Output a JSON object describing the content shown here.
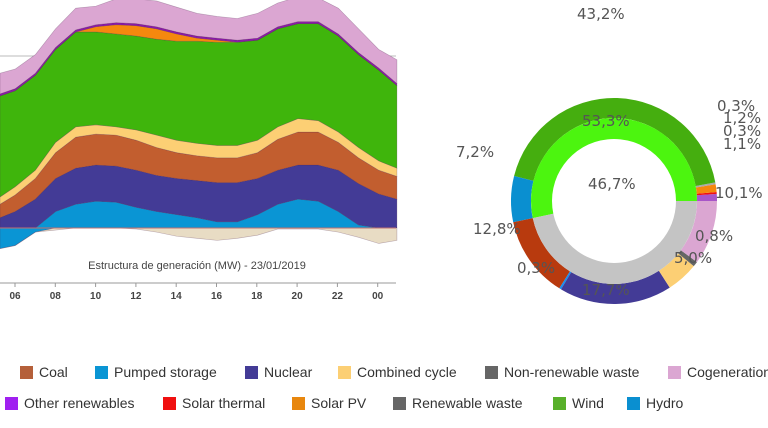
{
  "chart_data": [
    {
      "type": "area",
      "stacked": true,
      "title": "Estructura de generación (MW) - 23/01/2019",
      "x_ticks": [
        "06",
        "08",
        "10",
        "12",
        "14",
        "16",
        "18",
        "20",
        "22",
        "00"
      ],
      "x_hours": [
        5.25,
        6,
        7,
        8,
        9,
        10,
        11,
        12,
        13,
        14,
        15,
        16,
        17,
        18,
        19,
        20,
        21,
        22,
        23,
        24,
        24.9
      ],
      "gridline": 25000,
      "series": [
        {
          "key": "hydro",
          "color": "#0a95d4",
          "values": [
            0,
            0,
            0,
            2400,
            3450,
            3900,
            3750,
            3000,
            2400,
            1950,
            1500,
            900,
            900,
            1950,
            3450,
            4200,
            3900,
            2400,
            450,
            0,
            0
          ]
        },
        {
          "key": "nuclear",
          "color": "#433b96",
          "values": [
            1500,
            2400,
            4200,
            4800,
            5250,
            5250,
            5250,
            5400,
            5250,
            5250,
            5400,
            5700,
            5700,
            5250,
            4950,
            4950,
            5250,
            6000,
            6000,
            4950,
            4200
          ]
        },
        {
          "key": "coal",
          "color": "#c25e2f",
          "values": [
            1950,
            2400,
            3000,
            3750,
            4500,
            4500,
            4500,
            4350,
            4050,
            3750,
            3600,
            3600,
            3600,
            3750,
            4500,
            4800,
            4800,
            4050,
            3750,
            3450,
            3300
          ]
        },
        {
          "key": "combined_cycle",
          "color": "#fccf74",
          "values": [
            1050,
            1200,
            1200,
            1500,
            1500,
            1350,
            1200,
            1500,
            1800,
            1800,
            1800,
            1800,
            1800,
            1800,
            1800,
            1950,
            1650,
            1500,
            1500,
            1350,
            1200
          ]
        },
        {
          "key": "wind",
          "color": "#3fb50c",
          "values": [
            14700,
            13950,
            13800,
            13500,
            13800,
            13500,
            13500,
            13650,
            13950,
            14400,
            14850,
            15000,
            15000,
            14550,
            14250,
            13800,
            14100,
            13950,
            13500,
            13200,
            12000
          ]
        },
        {
          "key": "solar_pv",
          "color": "#f5880e",
          "values": [
            0,
            0,
            0,
            0,
            0,
            750,
            1350,
            1500,
            1500,
            1050,
            450,
            300,
            0,
            0,
            0,
            0,
            0,
            0,
            0,
            0,
            0
          ]
        },
        {
          "key": "other_renewables",
          "color": "#8b1aa8",
          "values": [
            300,
            300,
            300,
            300,
            300,
            300,
            300,
            300,
            300,
            300,
            300,
            300,
            300,
            300,
            300,
            300,
            300,
            300,
            300,
            300,
            300
          ]
        },
        {
          "key": "cogeneration",
          "color": "#dba6d2",
          "values": [
            3000,
            2850,
            2700,
            2700,
            3150,
            2700,
            3450,
            3600,
            3750,
            3600,
            3300,
            3150,
            3150,
            3600,
            3450,
            3600,
            3450,
            3750,
            3450,
            2700,
            3450
          ]
        }
      ],
      "negative_series": [
        {
          "key": "pumped_consumption",
          "color": "#0a95d4",
          "values": [
            -3000,
            -2550,
            -600,
            0,
            0,
            0,
            0,
            0,
            0,
            0,
            0,
            0,
            0,
            0,
            0,
            0,
            0,
            0,
            0,
            0,
            0
          ]
        },
        {
          "key": "other",
          "color": "#e8dcc4",
          "values": [
            0,
            0,
            0,
            -300,
            0,
            0,
            0,
            -150,
            -600,
            -1200,
            -1500,
            -1800,
            -1500,
            -1050,
            -150,
            -150,
            -150,
            -600,
            -1350,
            -2250,
            -1800
          ]
        }
      ]
    },
    {
      "type": "pie",
      "donut": true,
      "outer": [
        {
          "key": "other_renewables",
          "value": 1.1,
          "label": "1,1%",
          "color": "#a855c8"
        },
        {
          "key": "solar_thermal",
          "value": 0.3,
          "label": "0,3%",
          "color": "#f01010"
        },
        {
          "key": "solar_pv",
          "value": 1.2,
          "label": "1,2%",
          "color": "#f5880e"
        },
        {
          "key": "renewable_waste",
          "value": 0.3,
          "label": "0,3%",
          "color": "#aaaaaa"
        },
        {
          "key": "wind",
          "value": 43.2,
          "label": "43,2%",
          "color": "#45ae0f"
        },
        {
          "key": "hydro",
          "value": 7.2,
          "label": "7,2%",
          "color": "#0a8fd0"
        },
        {
          "key": "coal",
          "value": 12.8,
          "label": "12,8%",
          "color": "#b83a0e"
        },
        {
          "key": "pumped_storage",
          "value": 0.3,
          "label": "0,3%",
          "color": "#1a8ff0"
        },
        {
          "key": "nuclear",
          "value": 17.7,
          "label": "17,7%",
          "color": "#433b96"
        },
        {
          "key": "combined_cycle",
          "value": 5.0,
          "label": "5,0%",
          "color": "#fccf74"
        },
        {
          "key": "non_renewable_waste",
          "value": 0.8,
          "label": "0,8%",
          "color": "#666666"
        },
        {
          "key": "cogeneration",
          "value": 10.1,
          "label": "10,1%",
          "color": "#dba6d2"
        }
      ],
      "inner": [
        {
          "key": "renewable",
          "value": 53.3,
          "label": "53,3%",
          "color": "#4cf50f"
        },
        {
          "key": "non_renewable",
          "value": 46.7,
          "label": "46,7%",
          "color": "#c4c4c4"
        }
      ]
    }
  ],
  "legend": [
    [
      {
        "label": "Coal",
        "color": "#b5603a"
      },
      {
        "label": "Pumped storage",
        "color": "#0a95d4"
      },
      {
        "label": "Nuclear",
        "color": "#433b96"
      },
      {
        "label": "Combined cycle",
        "color": "#fccf74"
      },
      {
        "label": "Non-renewable waste",
        "color": "#666666"
      },
      {
        "label": "Cogeneration",
        "color": "#dba6d2"
      }
    ],
    [
      {
        "label": "Other renewables",
        "color": "#a020f0"
      },
      {
        "label": "Solar thermal",
        "color": "#f01010"
      },
      {
        "label": "Solar PV",
        "color": "#e8870e"
      },
      {
        "label": "Renewable waste",
        "color": "#666666"
      },
      {
        "label": "Wind",
        "color": "#58b02a"
      },
      {
        "label": "Hydro",
        "color": "#0a8fd0"
      }
    ]
  ]
}
